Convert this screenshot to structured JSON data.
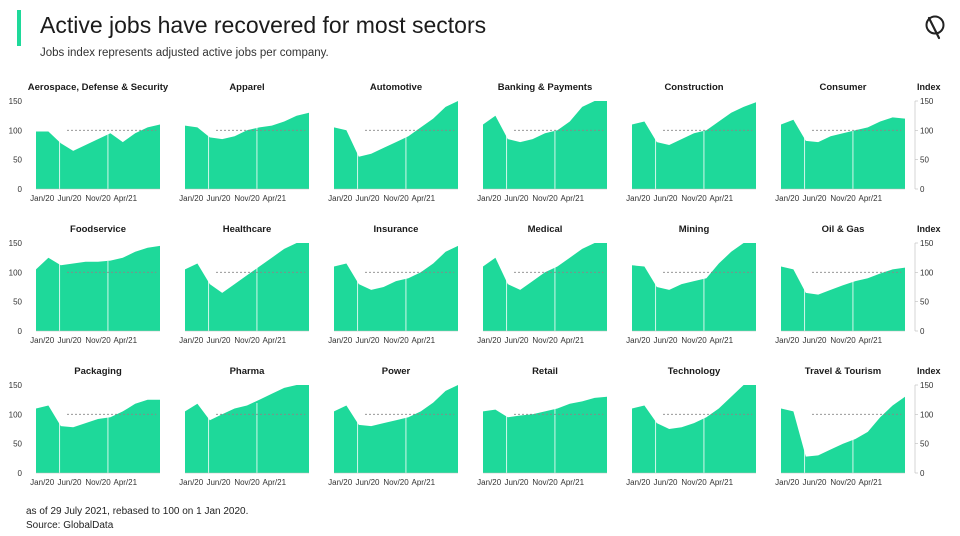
{
  "header": {
    "title": "Active jobs have recovered for most sectors",
    "subtitle": "Jobs index represents adjusted active jobs per company."
  },
  "footer": {
    "note": "as of 29 July 2021, rebased to 100 on 1 Jan 2020.",
    "source": "Source: GlobalData"
  },
  "colors": {
    "accent": "#1ed99a",
    "area": "#1ed99a",
    "reference_line": "#888888"
  },
  "chart_data": {
    "type": "area",
    "ylim": [
      0,
      150
    ],
    "yticks": [
      0,
      50,
      100,
      150
    ],
    "xlabels": [
      "Jan/20",
      "Jun/20",
      "Nov/20",
      "Apr/21"
    ],
    "right_axis_label": "Index",
    "reference_value": 100,
    "panels": [
      {
        "name": "Aerospace, Defense & Security",
        "x": [
          0,
          2,
          4,
          6,
          8,
          10,
          12,
          14,
          16,
          18,
          20
        ],
        "y": [
          98,
          98,
          78,
          65,
          75,
          85,
          95,
          80,
          95,
          105,
          110
        ]
      },
      {
        "name": "Apparel",
        "x": [
          0,
          2,
          4,
          6,
          8,
          10,
          12,
          14,
          16,
          18,
          20
        ],
        "y": [
          108,
          105,
          88,
          85,
          90,
          100,
          105,
          108,
          115,
          125,
          130
        ]
      },
      {
        "name": "Automotive",
        "x": [
          0,
          2,
          4,
          6,
          8,
          10,
          12,
          14,
          16,
          18,
          20
        ],
        "y": [
          105,
          100,
          55,
          60,
          70,
          80,
          90,
          105,
          120,
          140,
          155
        ]
      },
      {
        "name": "Banking & Payments",
        "x": [
          0,
          2,
          4,
          6,
          8,
          10,
          12,
          14,
          16,
          18,
          20
        ],
        "y": [
          110,
          125,
          85,
          80,
          85,
          95,
          100,
          115,
          140,
          155,
          155
        ]
      },
      {
        "name": "Construction",
        "x": [
          0,
          2,
          4,
          6,
          8,
          10,
          12,
          14,
          16,
          18,
          20
        ],
        "y": [
          110,
          115,
          80,
          75,
          85,
          95,
          100,
          115,
          130,
          140,
          148
        ]
      },
      {
        "name": "Consumer",
        "x": [
          0,
          2,
          4,
          6,
          8,
          10,
          12,
          14,
          16,
          18,
          20
        ],
        "y": [
          110,
          118,
          82,
          80,
          90,
          95,
          100,
          105,
          115,
          122,
          120
        ]
      },
      {
        "name": "Foodservice",
        "x": [
          0,
          2,
          4,
          6,
          8,
          10,
          12,
          14,
          16,
          18,
          20
        ],
        "y": [
          105,
          125,
          112,
          115,
          118,
          118,
          120,
          125,
          135,
          142,
          145
        ]
      },
      {
        "name": "Healthcare",
        "x": [
          0,
          2,
          4,
          6,
          8,
          10,
          12,
          14,
          16,
          18,
          20
        ],
        "y": [
          105,
          115,
          80,
          65,
          80,
          95,
          110,
          125,
          140,
          155,
          155
        ]
      },
      {
        "name": "Insurance",
        "x": [
          0,
          2,
          4,
          6,
          8,
          10,
          12,
          14,
          16,
          18,
          20
        ],
        "y": [
          110,
          115,
          80,
          70,
          75,
          85,
          90,
          100,
          115,
          135,
          145
        ]
      },
      {
        "name": "Medical",
        "x": [
          0,
          2,
          4,
          6,
          8,
          10,
          12,
          14,
          16,
          18,
          20
        ],
        "y": [
          110,
          125,
          80,
          70,
          85,
          100,
          110,
          125,
          140,
          155,
          155
        ]
      },
      {
        "name": "Mining",
        "x": [
          0,
          2,
          4,
          6,
          8,
          10,
          12,
          14,
          16,
          18,
          20
        ],
        "y": [
          112,
          110,
          75,
          70,
          80,
          85,
          90,
          115,
          135,
          150,
          155
        ]
      },
      {
        "name": "Oil & Gas",
        "x": [
          0,
          2,
          4,
          6,
          8,
          10,
          12,
          14,
          16,
          18,
          20
        ],
        "y": [
          110,
          105,
          65,
          62,
          70,
          78,
          85,
          90,
          98,
          105,
          108
        ]
      },
      {
        "name": "Packaging",
        "x": [
          0,
          2,
          4,
          6,
          8,
          10,
          12,
          14,
          16,
          18,
          20
        ],
        "y": [
          110,
          115,
          80,
          78,
          85,
          92,
          95,
          105,
          118,
          125,
          125
        ]
      },
      {
        "name": "Pharma",
        "x": [
          0,
          2,
          4,
          6,
          8,
          10,
          12,
          14,
          16,
          18,
          20
        ],
        "y": [
          105,
          118,
          90,
          100,
          110,
          115,
          125,
          135,
          145,
          155,
          155
        ]
      },
      {
        "name": "Power",
        "x": [
          0,
          2,
          4,
          6,
          8,
          10,
          12,
          14,
          16,
          18,
          20
        ],
        "y": [
          105,
          115,
          82,
          80,
          85,
          90,
          95,
          105,
          120,
          140,
          155
        ]
      },
      {
        "name": "Retail",
        "x": [
          0,
          2,
          4,
          6,
          8,
          10,
          12,
          14,
          16,
          18,
          20
        ],
        "y": [
          105,
          108,
          95,
          98,
          100,
          105,
          110,
          118,
          122,
          128,
          130
        ]
      },
      {
        "name": "Technology",
        "x": [
          0,
          2,
          4,
          6,
          8,
          10,
          12,
          14,
          16,
          18,
          20
        ],
        "y": [
          110,
          115,
          85,
          75,
          78,
          85,
          95,
          110,
          130,
          150,
          155
        ]
      },
      {
        "name": "Travel & Tourism",
        "x": [
          0,
          2,
          4,
          6,
          8,
          10,
          12,
          14,
          16,
          18,
          20
        ],
        "y": [
          110,
          105,
          28,
          30,
          40,
          50,
          58,
          70,
          95,
          115,
          130
        ]
      }
    ]
  }
}
